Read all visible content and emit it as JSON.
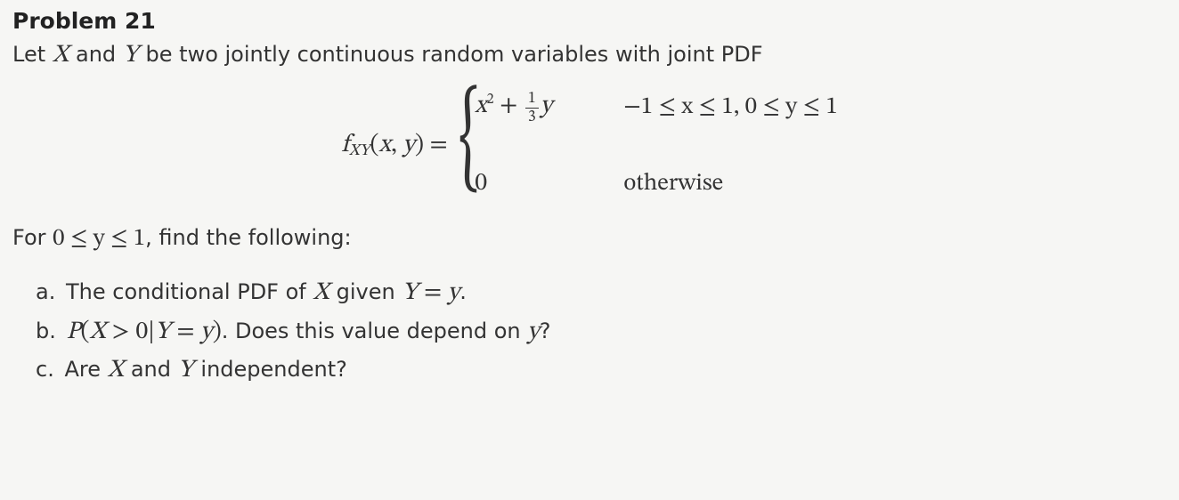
{
  "title": "Problem 21",
  "intro_pre": "Let ",
  "intro_mid": " and ",
  "intro_post": " be two jointly continuous random variables with joint PDF",
  "var_X": "X",
  "var_Y": "Y",
  "formula": {
    "lhs_func": "f",
    "lhs_sub": "XY",
    "lhs_args_open": "(",
    "lhs_arg1": "x",
    "lhs_comma": ", ",
    "lhs_arg2": "y",
    "lhs_args_close": ") = ",
    "case1_expr_x": "x",
    "case1_expr_sup": "2",
    "case1_expr_plus": " + ",
    "case1_frac_num": "1",
    "case1_frac_den": "3",
    "case1_expr_y": "y",
    "case1_cond": "−1 ≤ x ≤ 1, 0 ≤ y ≤ 1",
    "case2_expr": "0",
    "case2_cond": "otherwise"
  },
  "mid_pre": "For ",
  "mid_ineq": "0 ≤ y ≤ 1",
  "mid_post": ", find the following:",
  "parts": {
    "a": {
      "label": "a.",
      "pre": "The conditional PDF of ",
      "mid": " given ",
      "eq_lhs": "Y",
      "eq_eq": " = ",
      "eq_rhs": "y",
      "post": "."
    },
    "b": {
      "label": "b.",
      "expr_P": "P",
      "expr_open": "(",
      "expr_X": "X",
      "expr_gt": " > 0",
      "expr_bar": "|",
      "expr_Y": "Y",
      "expr_eq": " = ",
      "expr_y": "y",
      "expr_close": ")",
      "tail_pre": ". Does this value depend on ",
      "tail_post": "?"
    },
    "c": {
      "label": "c.",
      "pre": "Are ",
      "mid": " and ",
      "post": " independent?"
    }
  }
}
